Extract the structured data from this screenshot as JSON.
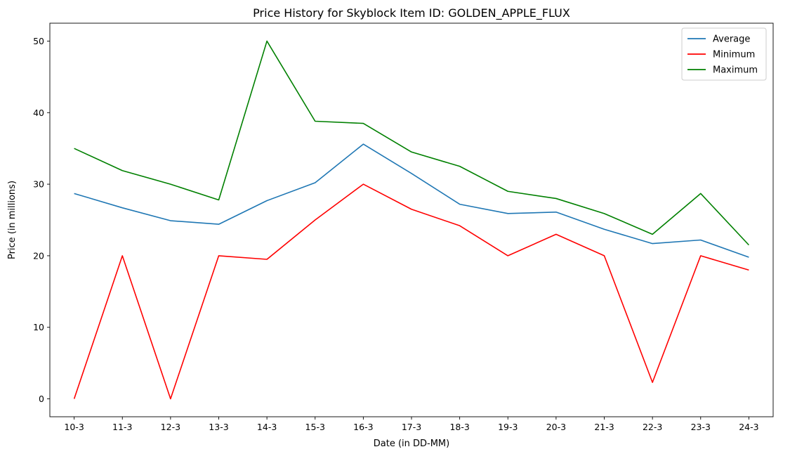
{
  "chart_data": {
    "type": "line",
    "title": "Price History for Skyblock Item ID: GOLDEN_APPLE_FLUX",
    "xlabel": "Date (in DD-MM)",
    "ylabel": "Price (in millions)",
    "categories": [
      "10-3",
      "11-3",
      "12-3",
      "13-3",
      "14-3",
      "15-3",
      "16-3",
      "17-3",
      "18-3",
      "19-3",
      "20-3",
      "21-3",
      "22-3",
      "23-3",
      "24-3"
    ],
    "ylim": [
      -2.5,
      52.5
    ],
    "yticks": [
      "0",
      "10",
      "20",
      "30",
      "40",
      "50"
    ],
    "grid": false,
    "legend_position": "top-right",
    "series": [
      {
        "name": "Average",
        "color": "#1f77b4",
        "values": [
          28.7,
          26.7,
          24.9,
          24.4,
          27.7,
          30.2,
          35.6,
          31.5,
          27.2,
          25.9,
          26.1,
          23.7,
          21.7,
          22.2,
          19.8
        ]
      },
      {
        "name": "Minimum",
        "color": "#ff0000",
        "values": [
          0.0,
          20.0,
          0.0,
          20.0,
          19.5,
          25.0,
          30.0,
          26.5,
          24.2,
          20.0,
          23.0,
          20.0,
          2.3,
          20.0,
          18.0
        ]
      },
      {
        "name": "Maximum",
        "color": "#008000",
        "values": [
          35.0,
          31.9,
          30.0,
          27.8,
          50.0,
          38.8,
          38.5,
          34.5,
          32.5,
          29.0,
          28.0,
          25.9,
          23.0,
          28.7,
          21.5
        ]
      }
    ]
  }
}
